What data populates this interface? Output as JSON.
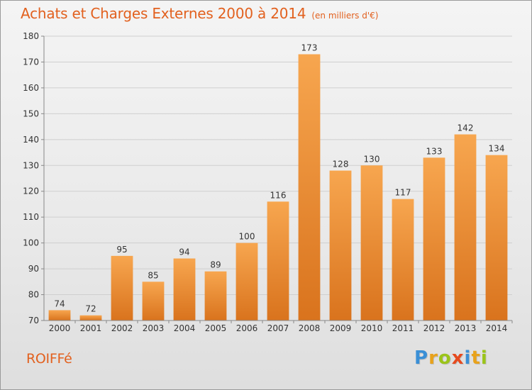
{
  "header": {
    "title": "Achats et Charges Externes 2000 à 2014",
    "subtitle": "(en milliers d'€)"
  },
  "footer": {
    "commune": "ROIFFé",
    "brand_letters": [
      "P",
      "r",
      "o",
      "x",
      "i",
      "t",
      "i"
    ],
    "brand_colors": [
      "#3a8fd6",
      "#e8a21b",
      "#9bc41a",
      "#e64a1e",
      "#3a8fd6",
      "#e8a21b",
      "#9bc41a"
    ]
  },
  "colors": {
    "bar_top": "#f7a64f",
    "bar_bottom": "#d9731d",
    "grid": "#cfcfcf",
    "axis": "#888888",
    "label": "#333333",
    "accent": "#e2611f"
  },
  "chart_data": {
    "type": "bar",
    "title": "Achats et Charges Externes 2000 à 2014",
    "subtitle": "(en milliers d'€)",
    "categories": [
      "2000",
      "2001",
      "2002",
      "2003",
      "2004",
      "2005",
      "2006",
      "2007",
      "2008",
      "2009",
      "2010",
      "2011",
      "2012",
      "2013",
      "2014"
    ],
    "values": [
      74,
      72,
      95,
      85,
      94,
      89,
      100,
      116,
      173,
      128,
      130,
      117,
      133,
      142,
      134
    ],
    "xlabel": "",
    "ylabel": "",
    "ylim": [
      70,
      180
    ],
    "yticks": [
      70,
      80,
      90,
      100,
      110,
      120,
      130,
      140,
      150,
      160,
      170,
      180
    ],
    "grid": true,
    "data_labels": true
  }
}
